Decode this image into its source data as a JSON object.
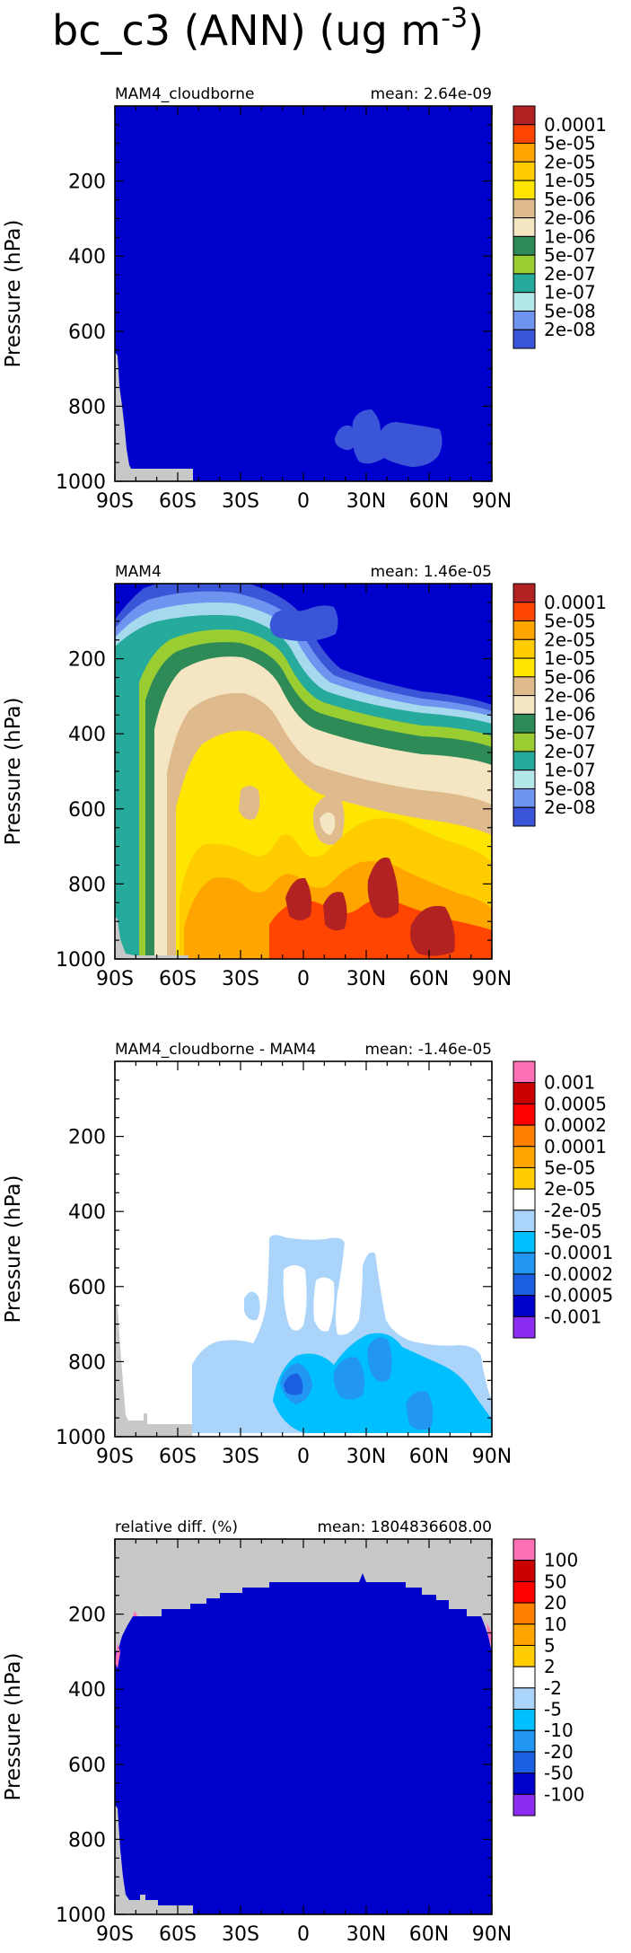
{
  "page": {
    "title": "bc_c3 (ANN) (ug m",
    "title_superscript": "-3",
    "title_close": ")"
  },
  "colors": {
    "abs_levels": [
      "#0000cd",
      "#3a55d8",
      "#6f94ef",
      "#a6d8ee",
      "#b4e8e8",
      "#26aa9b",
      "#9acd32",
      "#2e8b57",
      "#f5e6c3",
      "#dfba8d",
      "#ffe600",
      "#ffcc00",
      "#ffa500",
      "#ff4500",
      "#b22222"
    ],
    "diff_levels": [
      "#8b2cf2",
      "#0000cd",
      "#1a5fe0",
      "#2196f3",
      "#00bfff",
      "#abd4fa",
      "#ffffff",
      "#ffcc00",
      "#ffa500",
      "#ff7f00",
      "#ff0000",
      "#cc0000",
      "#ff6fb5"
    ],
    "missing": "#c8c8c8"
  },
  "chart_data": [
    {
      "type": "heatmap",
      "left_title": "MAM4_cloudborne",
      "right_title": "mean: 2.64e-09",
      "ylabel": "Pressure (hPa)",
      "xlabel": "",
      "x_ticks": [
        "90S",
        "60S",
        "30S",
        "0",
        "30N",
        "60N",
        "90N"
      ],
      "x_range": [
        -90,
        90
      ],
      "y_ticks": [
        "200",
        "400",
        "600",
        "800",
        "1000"
      ],
      "y_range": [
        1000,
        0
      ],
      "y_scale": "linear",
      "legend": [
        "0.0001",
        "5e-05",
        "2e-05",
        "1e-05",
        "5e-06",
        "2e-06",
        "1e-06",
        "5e-07",
        "2e-07",
        "1e-07",
        "5e-08",
        "2e-08"
      ],
      "legend_placement": "right",
      "palette": "abs"
    },
    {
      "type": "heatmap",
      "left_title": "MAM4",
      "right_title": "mean: 1.46e-05",
      "ylabel": "Pressure (hPa)",
      "xlabel": "",
      "x_ticks": [
        "90S",
        "60S",
        "30S",
        "0",
        "30N",
        "60N",
        "90N"
      ],
      "x_range": [
        -90,
        90
      ],
      "y_ticks": [
        "200",
        "400",
        "600",
        "800",
        "1000"
      ],
      "y_range": [
        1000,
        0
      ],
      "y_scale": "linear",
      "legend": [
        "0.0001",
        "5e-05",
        "2e-05",
        "1e-05",
        "5e-06",
        "2e-06",
        "1e-06",
        "5e-07",
        "2e-07",
        "1e-07",
        "5e-08",
        "2e-08"
      ],
      "legend_placement": "right",
      "palette": "abs"
    },
    {
      "type": "heatmap",
      "left_title": "MAM4_cloudborne - MAM4",
      "right_title": "mean: -1.46e-05",
      "ylabel": "Pressure (hPa)",
      "xlabel": "",
      "x_ticks": [
        "90S",
        "60S",
        "30S",
        "0",
        "30N",
        "60N",
        "90N"
      ],
      "x_range": [
        -90,
        90
      ],
      "y_ticks": [
        "200",
        "400",
        "600",
        "800",
        "1000"
      ],
      "y_range": [
        1000,
        0
      ],
      "y_scale": "linear",
      "legend": [
        "0.001",
        "0.0005",
        "0.0002",
        "0.0001",
        "5e-05",
        "2e-05",
        "-2e-05",
        "-5e-05",
        "-0.0001",
        "-0.0002",
        "-0.0005",
        "-0.001"
      ],
      "legend_placement": "right",
      "palette": "diff"
    },
    {
      "type": "heatmap",
      "left_title": "relative diff. (%)",
      "right_title": "mean: 1804836608.00",
      "ylabel": "Pressure (hPa)",
      "xlabel": "",
      "x_ticks": [
        "90S",
        "60S",
        "30S",
        "0",
        "30N",
        "60N",
        "90N"
      ],
      "x_range": [
        -90,
        90
      ],
      "y_ticks": [
        "200",
        "400",
        "600",
        "800",
        "1000"
      ],
      "y_range": [
        1000,
        0
      ],
      "y_scale": "linear",
      "legend": [
        "100",
        "50",
        "20",
        "10",
        "5",
        "2",
        "-2",
        "-5",
        "-10",
        "-20",
        "-50",
        "-100"
      ],
      "legend_placement": "right",
      "palette": "diff"
    }
  ]
}
